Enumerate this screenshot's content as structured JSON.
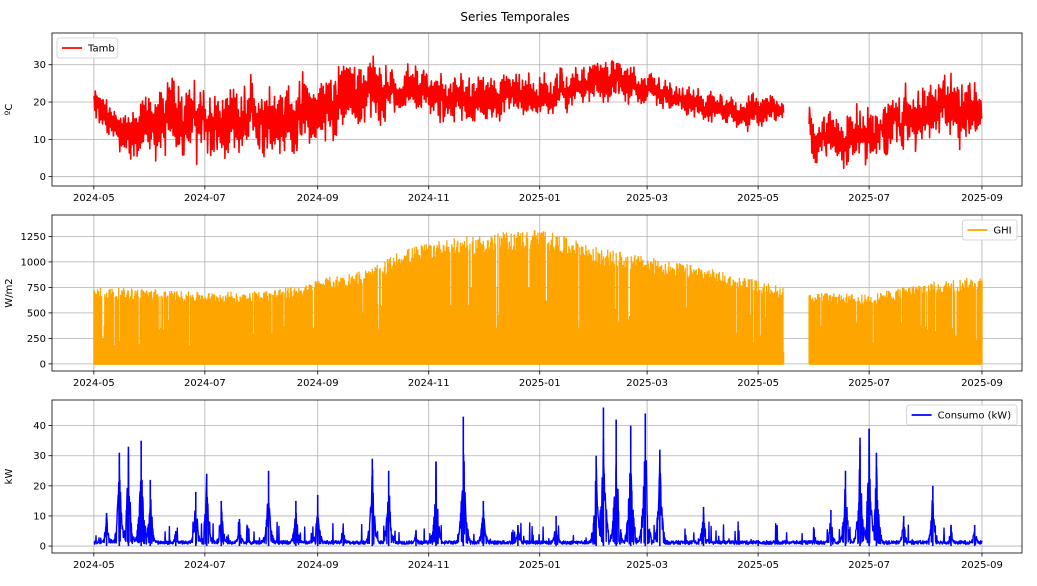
{
  "figure": {
    "title": "Series Temporales"
  },
  "chart_data": [
    {
      "type": "line",
      "name": "tamb",
      "series": [
        {
          "name": "Tamb",
          "color": "#ff0000"
        }
      ],
      "ylabel": "ºC",
      "ylim": [
        -2.5,
        38.5
      ],
      "yticks": [
        0,
        10,
        20,
        30
      ],
      "xlim": [
        "2024-04-08",
        "2025-09-23"
      ],
      "xticks": [
        "2024-05",
        "2024-07",
        "2024-09",
        "2024-11",
        "2025-01",
        "2025-03",
        "2025-05",
        "2025-07",
        "2025-09"
      ],
      "data_range": [
        "2024-05-01",
        "2025-09-01"
      ],
      "gap": [
        "2025-05-15",
        "2025-05-29"
      ],
      "envelope": [
        {
          "date": "2024-05-01",
          "low": 12,
          "high": 26
        },
        {
          "date": "2024-05-15",
          "low": 5,
          "high": 18
        },
        {
          "date": "2024-06-01",
          "low": 2,
          "high": 25
        },
        {
          "date": "2024-06-15",
          "low": 4,
          "high": 30
        },
        {
          "date": "2024-07-01",
          "low": 1,
          "high": 27
        },
        {
          "date": "2024-07-15",
          "low": 0,
          "high": 25
        },
        {
          "date": "2024-08-01",
          "low": 5,
          "high": 29
        },
        {
          "date": "2024-08-15",
          "low": 2,
          "high": 28
        },
        {
          "date": "2024-09-01",
          "low": 6,
          "high": 30
        },
        {
          "date": "2024-09-15",
          "low": 10,
          "high": 33
        },
        {
          "date": "2024-10-01",
          "low": 13,
          "high": 35
        },
        {
          "date": "2024-10-15",
          "low": 14,
          "high": 30
        },
        {
          "date": "2024-11-01",
          "low": 14,
          "high": 31
        },
        {
          "date": "2024-11-15",
          "low": 12,
          "high": 30
        },
        {
          "date": "2024-12-01",
          "low": 13,
          "high": 28
        },
        {
          "date": "2024-12-15",
          "low": 15,
          "high": 30
        },
        {
          "date": "2025-01-01",
          "low": 14,
          "high": 29
        },
        {
          "date": "2025-01-15",
          "low": 16,
          "high": 31
        },
        {
          "date": "2025-02-01",
          "low": 18,
          "high": 34
        },
        {
          "date": "2025-02-15",
          "low": 18,
          "high": 32
        },
        {
          "date": "2025-03-01",
          "low": 17,
          "high": 28
        },
        {
          "date": "2025-03-15",
          "low": 15,
          "high": 26
        },
        {
          "date": "2025-04-01",
          "low": 13,
          "high": 24
        },
        {
          "date": "2025-04-15",
          "low": 11,
          "high": 23
        },
        {
          "date": "2025-05-01",
          "low": 12,
          "high": 24
        },
        {
          "date": "2025-05-14",
          "low": 13,
          "high": 22
        },
        {
          "date": "2025-05-30",
          "low": 3,
          "high": 19
        },
        {
          "date": "2025-06-15",
          "low": 2,
          "high": 20
        },
        {
          "date": "2025-07-01",
          "low": -1,
          "high": 23
        },
        {
          "date": "2025-07-15",
          "low": 5,
          "high": 24
        },
        {
          "date": "2025-08-01",
          "low": 6,
          "high": 27
        },
        {
          "date": "2025-08-15",
          "low": 7,
          "high": 31
        },
        {
          "date": "2025-09-01",
          "low": 8,
          "high": 27
        }
      ]
    },
    {
      "type": "area",
      "name": "ghi",
      "series": [
        {
          "name": "GHI",
          "color": "#ffa500"
        }
      ],
      "ylabel": "W/m2",
      "ylim": [
        -70,
        1460
      ],
      "yticks": [
        0,
        250,
        500,
        750,
        1000,
        1250
      ],
      "xlim": [
        "2024-04-08",
        "2025-09-23"
      ],
      "xticks": [
        "2024-05",
        "2024-07",
        "2024-09",
        "2024-11",
        "2025-01",
        "2025-03",
        "2025-05",
        "2025-07",
        "2025-09"
      ],
      "data_range": [
        "2024-05-01",
        "2025-09-01"
      ],
      "gap": [
        "2025-05-15",
        "2025-05-29"
      ],
      "envelope": [
        {
          "date": "2024-05-01",
          "high": 750
        },
        {
          "date": "2024-06-01",
          "high": 740
        },
        {
          "date": "2024-07-01",
          "high": 700
        },
        {
          "date": "2024-08-01",
          "high": 720
        },
        {
          "date": "2024-08-25",
          "high": 770
        },
        {
          "date": "2024-09-01",
          "high": 830
        },
        {
          "date": "2024-10-01",
          "high": 940
        },
        {
          "date": "2024-10-15",
          "high": 1100
        },
        {
          "date": "2024-11-01",
          "high": 1200
        },
        {
          "date": "2024-12-01",
          "high": 1270
        },
        {
          "date": "2025-01-01",
          "high": 1330
        },
        {
          "date": "2025-02-01",
          "high": 1150
        },
        {
          "date": "2025-03-01",
          "high": 1050
        },
        {
          "date": "2025-04-01",
          "high": 950
        },
        {
          "date": "2025-05-01",
          "high": 820
        },
        {
          "date": "2025-05-14",
          "high": 760
        },
        {
          "date": "2025-05-30",
          "high": 700
        },
        {
          "date": "2025-07-01",
          "high": 680
        },
        {
          "date": "2025-08-01",
          "high": 800
        },
        {
          "date": "2025-09-01",
          "high": 860
        }
      ]
    },
    {
      "type": "line",
      "name": "consumo",
      "series": [
        {
          "name": "Consumo (kW)",
          "color": "#0000ff"
        }
      ],
      "ylabel": "kW",
      "ylim": [
        -2.3,
        48.5
      ],
      "yticks": [
        0,
        10,
        20,
        30,
        40
      ],
      "xlim": [
        "2024-04-08",
        "2025-09-23"
      ],
      "xticks": [
        "2024-05",
        "2024-07",
        "2024-09",
        "2024-11",
        "2025-01",
        "2025-03",
        "2025-05",
        "2025-07",
        "2025-09"
      ],
      "data_range": [
        "2024-05-01",
        "2025-09-01"
      ],
      "peaks": [
        {
          "date": "2024-05-08",
          "value": 11
        },
        {
          "date": "2024-05-15",
          "value": 31
        },
        {
          "date": "2024-05-20",
          "value": 33
        },
        {
          "date": "2024-05-27",
          "value": 35
        },
        {
          "date": "2024-06-01",
          "value": 22
        },
        {
          "date": "2024-06-15",
          "value": 5
        },
        {
          "date": "2024-06-26",
          "value": 18
        },
        {
          "date": "2024-07-02",
          "value": 24
        },
        {
          "date": "2024-07-10",
          "value": 15
        },
        {
          "date": "2024-07-20",
          "value": 9
        },
        {
          "date": "2024-08-05",
          "value": 25
        },
        {
          "date": "2024-08-20",
          "value": 15
        },
        {
          "date": "2024-09-01",
          "value": 17
        },
        {
          "date": "2024-09-15",
          "value": 6
        },
        {
          "date": "2024-10-01",
          "value": 29
        },
        {
          "date": "2024-10-10",
          "value": 25
        },
        {
          "date": "2024-10-25",
          "value": 5
        },
        {
          "date": "2024-11-05",
          "value": 28
        },
        {
          "date": "2024-11-20",
          "value": 43
        },
        {
          "date": "2024-12-01",
          "value": 15
        },
        {
          "date": "2024-12-20",
          "value": 7
        },
        {
          "date": "2025-01-10",
          "value": 10
        },
        {
          "date": "2025-02-01",
          "value": 30
        },
        {
          "date": "2025-02-05",
          "value": 46
        },
        {
          "date": "2025-02-12",
          "value": 42
        },
        {
          "date": "2025-02-20",
          "value": 40
        },
        {
          "date": "2025-02-28",
          "value": 44
        },
        {
          "date": "2025-03-08",
          "value": 32
        },
        {
          "date": "2025-04-01",
          "value": 13
        },
        {
          "date": "2025-05-01",
          "value": 2
        },
        {
          "date": "2025-06-10",
          "value": 12
        },
        {
          "date": "2025-06-18",
          "value": 25
        },
        {
          "date": "2025-06-26",
          "value": 36
        },
        {
          "date": "2025-07-01",
          "value": 39
        },
        {
          "date": "2025-07-05",
          "value": 31
        },
        {
          "date": "2025-07-20",
          "value": 10
        },
        {
          "date": "2025-08-05",
          "value": 20
        },
        {
          "date": "2025-08-15",
          "value": 7
        },
        {
          "date": "2025-08-28",
          "value": 7
        }
      ]
    }
  ]
}
